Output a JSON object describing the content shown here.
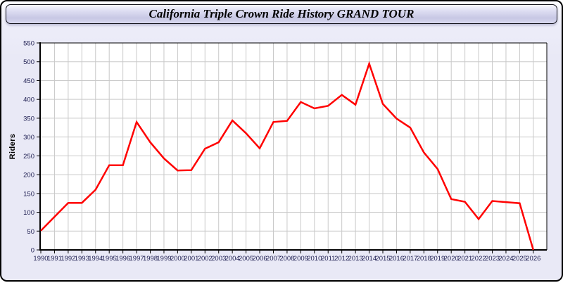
{
  "header": {
    "title": "California Triple Crown Ride History GRAND TOUR"
  },
  "y_axis_title": "Riders",
  "colors": {
    "line": "#ff0000",
    "grid": "#c9c9c9",
    "plot_bg": "#ffffff",
    "axis": "#000000",
    "tick_label": "#1f1f52",
    "window_bg": "#e9e9f6",
    "header_gradient_mid": "#c7c7e4"
  },
  "chart_data": {
    "type": "line",
    "title": "California Triple Crown Ride History GRAND TOUR",
    "xlabel": "",
    "ylabel": "Riders",
    "x": [
      1990,
      1991,
      1992,
      1993,
      1994,
      1995,
      1996,
      1997,
      1998,
      1999,
      2000,
      2001,
      2002,
      2003,
      2004,
      2005,
      2006,
      2007,
      2008,
      2009,
      2010,
      2011,
      2012,
      2013,
      2014,
      2015,
      2016,
      2017,
      2018,
      2019,
      2020,
      2021,
      2022,
      2023,
      2024,
      2025,
      2026
    ],
    "series": [
      {
        "name": "Riders",
        "values": [
          51,
          88,
          125,
          125,
          160,
          225,
          225,
          340,
          286,
          243,
          211,
          212,
          269,
          286,
          344,
          310,
          270,
          340,
          343,
          393,
          376,
          383,
          412,
          386,
          495,
          388,
          349,
          325,
          259,
          215,
          135,
          128,
          82,
          130,
          127,
          124,
          0
        ]
      }
    ],
    "ylim": [
      0,
      550
    ],
    "y_tick_step": 50,
    "grid": true,
    "legend": false
  }
}
